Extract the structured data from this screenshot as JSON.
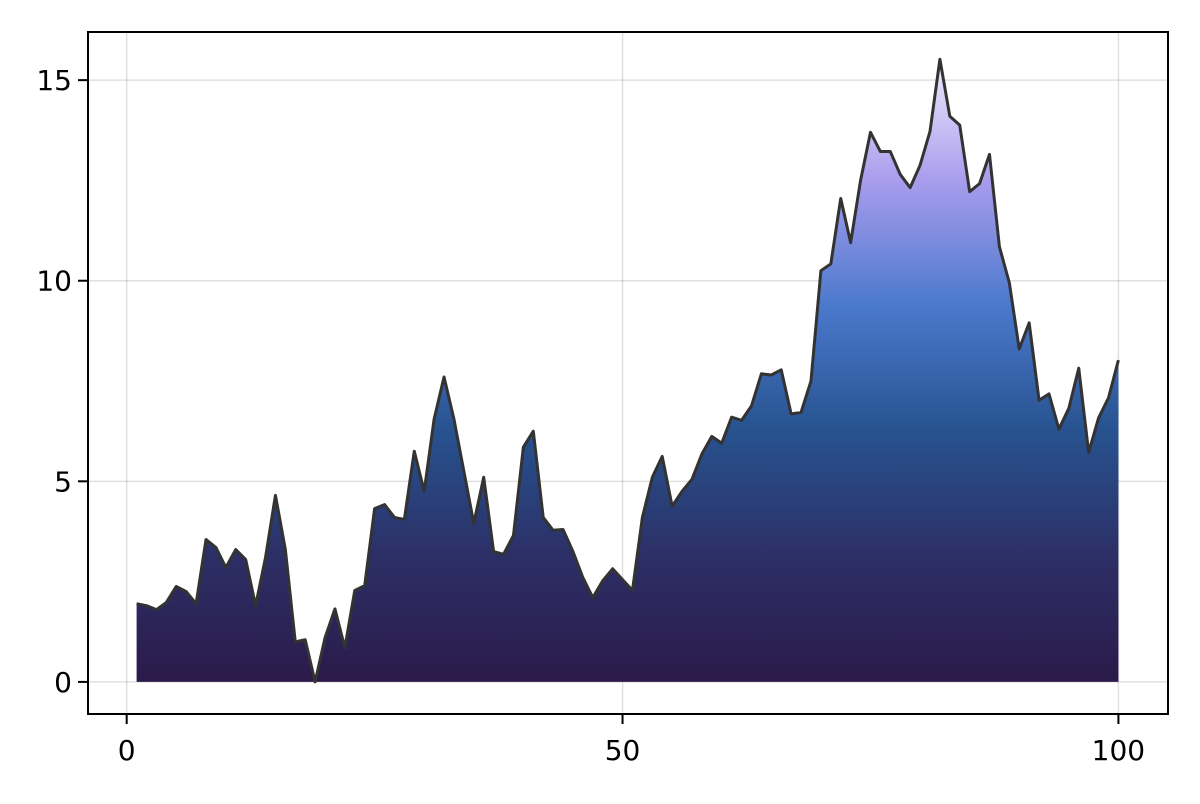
{
  "chart_data": {
    "type": "area",
    "title": "",
    "xlabel": "",
    "ylabel": "",
    "xlim": [
      -3.9,
      105.0
    ],
    "ylim": [
      -0.8,
      16.2
    ],
    "xticks": [
      0,
      50,
      100
    ],
    "yticks": [
      0,
      5,
      10,
      15
    ],
    "xtick_labels": [
      "0",
      "50",
      "100"
    ],
    "ytick_labels": [
      "0",
      "5",
      "10",
      "15"
    ],
    "grid": true,
    "legend": "none",
    "line_color": "#333333",
    "gradient_colors": [
      "#2b1a4a",
      "#2c2f66",
      "#27528f",
      "#4a79cc",
      "#a89ced",
      "#f0eefc"
    ],
    "x": [
      1,
      2,
      3,
      4,
      5,
      6,
      7,
      8,
      9,
      10,
      11,
      12,
      13,
      14,
      15,
      16,
      17,
      18,
      19,
      20,
      21,
      22,
      23,
      24,
      25,
      26,
      27,
      28,
      29,
      30,
      31,
      32,
      33,
      34,
      35,
      36,
      37,
      38,
      39,
      40,
      41,
      42,
      43,
      44,
      45,
      46,
      47,
      48,
      49,
      50,
      51,
      52,
      53,
      54,
      55,
      56,
      57,
      58,
      59,
      60,
      61,
      62,
      63,
      64,
      65,
      66,
      67,
      68,
      69,
      70,
      71,
      72,
      73,
      74,
      75,
      76,
      77,
      78,
      79,
      80,
      81,
      82,
      83,
      84,
      85,
      86,
      87,
      88,
      89,
      90,
      91,
      92,
      93,
      94,
      95,
      96,
      97,
      98,
      99,
      100
    ],
    "values": [
      1.95,
      1.9,
      1.8,
      1.98,
      2.38,
      2.25,
      1.95,
      3.55,
      3.35,
      2.85,
      3.3,
      3.05,
      1.9,
      3.1,
      4.65,
      3.3,
      1.0,
      1.05,
      0.0,
      1.1,
      1.82,
      0.85,
      2.28,
      2.4,
      4.32,
      4.42,
      4.1,
      4.05,
      5.75,
      4.75,
      6.55,
      7.6,
      6.55,
      5.25,
      3.95,
      5.1,
      3.25,
      3.18,
      3.65,
      5.85,
      6.25,
      4.1,
      3.78,
      3.8,
      3.25,
      2.6,
      2.1,
      2.52,
      2.82,
      2.55,
      2.28,
      4.1,
      5.1,
      5.62,
      4.38,
      4.75,
      5.05,
      5.68,
      6.12,
      5.95,
      6.6,
      6.52,
      6.88,
      7.68,
      7.65,
      7.78,
      6.68,
      6.72,
      7.5,
      10.25,
      10.42,
      12.05,
      10.95,
      12.5,
      13.7,
      13.22,
      13.22,
      12.65,
      12.32,
      12.88,
      13.72,
      15.52,
      14.1,
      13.88,
      12.22,
      12.42,
      13.15,
      10.85,
      9.95,
      8.3,
      8.95,
      7.02,
      7.18,
      6.3,
      6.82,
      7.82,
      5.72,
      6.58,
      7.08,
      8.02
    ]
  }
}
